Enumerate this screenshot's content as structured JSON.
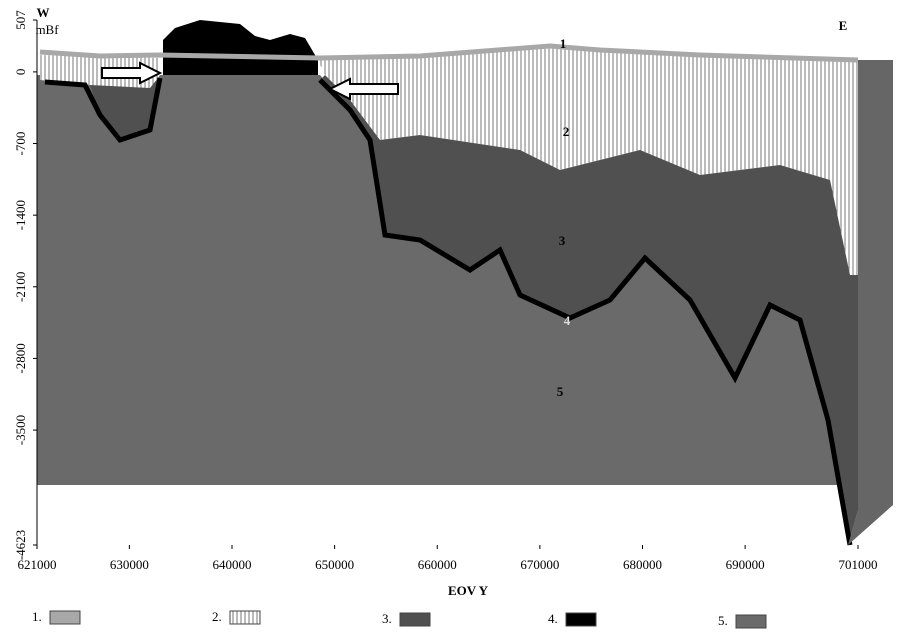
{
  "chart_data": {
    "type": "cross-section",
    "west_label": "W",
    "east_label": "E",
    "y_label": "mBf",
    "x_label": "EOV Y",
    "xlim": [
      621000,
      701000
    ],
    "xticks": [
      621000,
      630000,
      640000,
      650000,
      660000,
      670000,
      680000,
      690000,
      701000
    ],
    "ylim": [
      -4623,
      507
    ],
    "yticks": [
      507,
      0,
      -700,
      -1400,
      -2100,
      -2800,
      -3500,
      -4623
    ],
    "annotations": [
      "1",
      "2",
      "3",
      "4",
      "5"
    ],
    "series": [
      {
        "name": "1.",
        "color": "#a8a8a8"
      },
      {
        "name": "2.",
        "color": "#ffffff"
      },
      {
        "name": "3.",
        "color": "#505050"
      },
      {
        "name": "4.",
        "color": "#000000"
      },
      {
        "name": "5.",
        "color": "#6a6a6a"
      }
    ]
  }
}
